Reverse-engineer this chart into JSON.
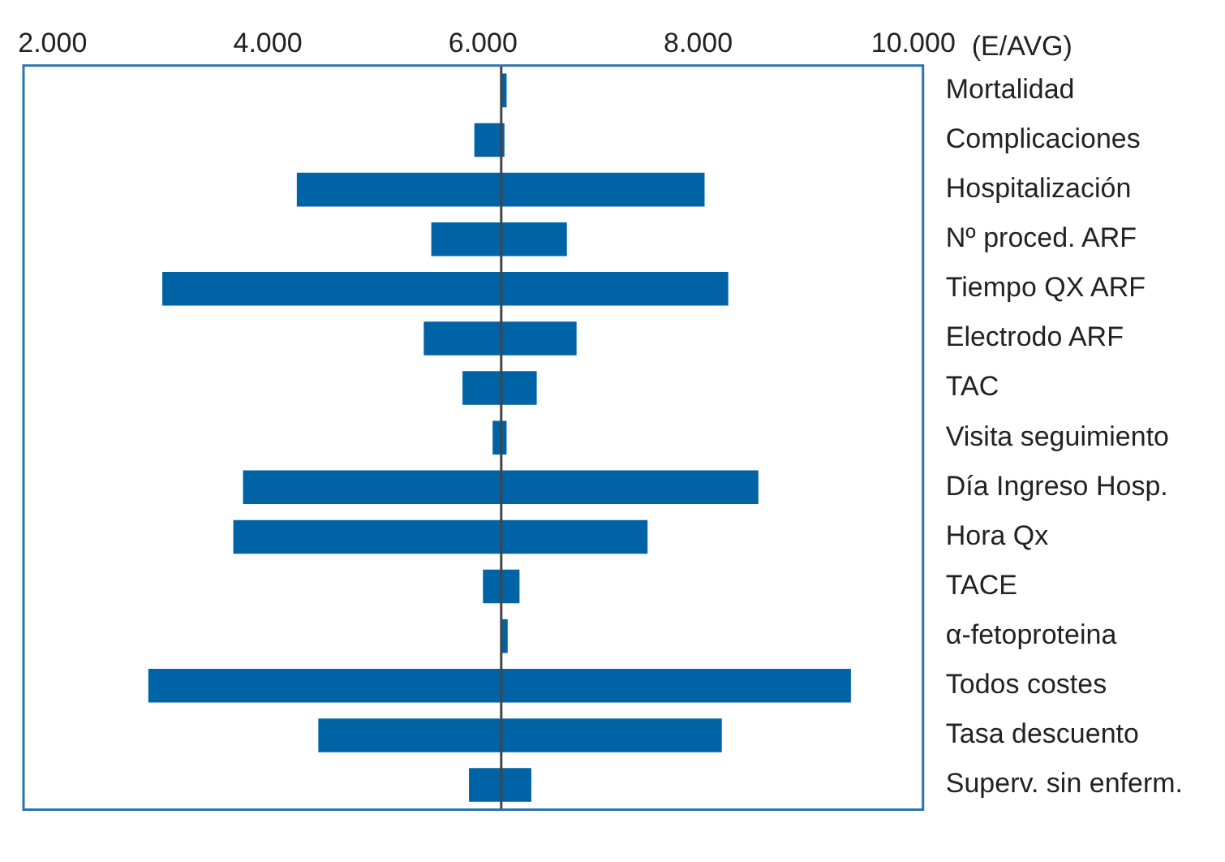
{
  "chart_data": {
    "type": "bar",
    "orientation": "horizontal",
    "xlabel": "(E/AVG)",
    "categories": [
      "Mortalidad",
      "Complicaciones",
      "Hospitalización",
      "Nº proced. ARF",
      "Tiempo QX ARF",
      "Electrodo ARF",
      "TAC",
      "Visita seguimiento",
      "Día Ingreso Hosp.",
      "Hora Qx",
      "TACE",
      "α-fetoproteina",
      "Todos costes",
      "Tasa descuento",
      "Superv. sin enferm."
    ],
    "base": [
      6170,
      5920,
      4270,
      5520,
      3020,
      5450,
      5810,
      6090,
      3770,
      3680,
      6000,
      6170,
      2890,
      4470,
      5870
    ],
    "values": [
      50,
      280,
      3790,
      1260,
      5260,
      1420,
      690,
      130,
      4790,
      3850,
      340,
      60,
      6530,
      3750,
      580
    ],
    "color": "#0063a6",
    "xlim": [
      1730,
      10090
    ],
    "xticks": [
      {
        "value": 2000,
        "label": "2.000"
      },
      {
        "value": 4000,
        "label": "4.000"
      },
      {
        "value": 6000,
        "label": "6.000"
      },
      {
        "value": 8000,
        "label": "8.000"
      },
      {
        "value": 10000,
        "label": "10.000"
      }
    ],
    "ref_lines": [
      {
        "axis": "x",
        "value": 6170,
        "color": "#444444"
      }
    ],
    "grid": false,
    "legend": false
  }
}
